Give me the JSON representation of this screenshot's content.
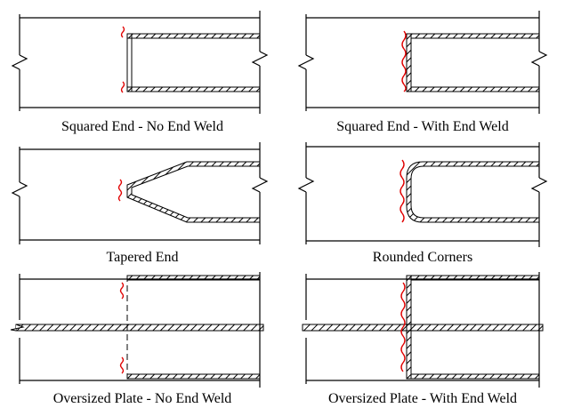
{
  "captions": {
    "squared_no_weld": "Squared End - No End Weld",
    "squared_with_weld": "Squared End - With End Weld",
    "tapered": "Tapered End",
    "rounded": "Rounded Corners",
    "oversized_no_weld": "Oversized Plate - No End Weld",
    "oversized_with_weld": "Oversized Plate - With End Weld"
  },
  "colors": {
    "line": "#000000",
    "weld": "#e00000"
  }
}
